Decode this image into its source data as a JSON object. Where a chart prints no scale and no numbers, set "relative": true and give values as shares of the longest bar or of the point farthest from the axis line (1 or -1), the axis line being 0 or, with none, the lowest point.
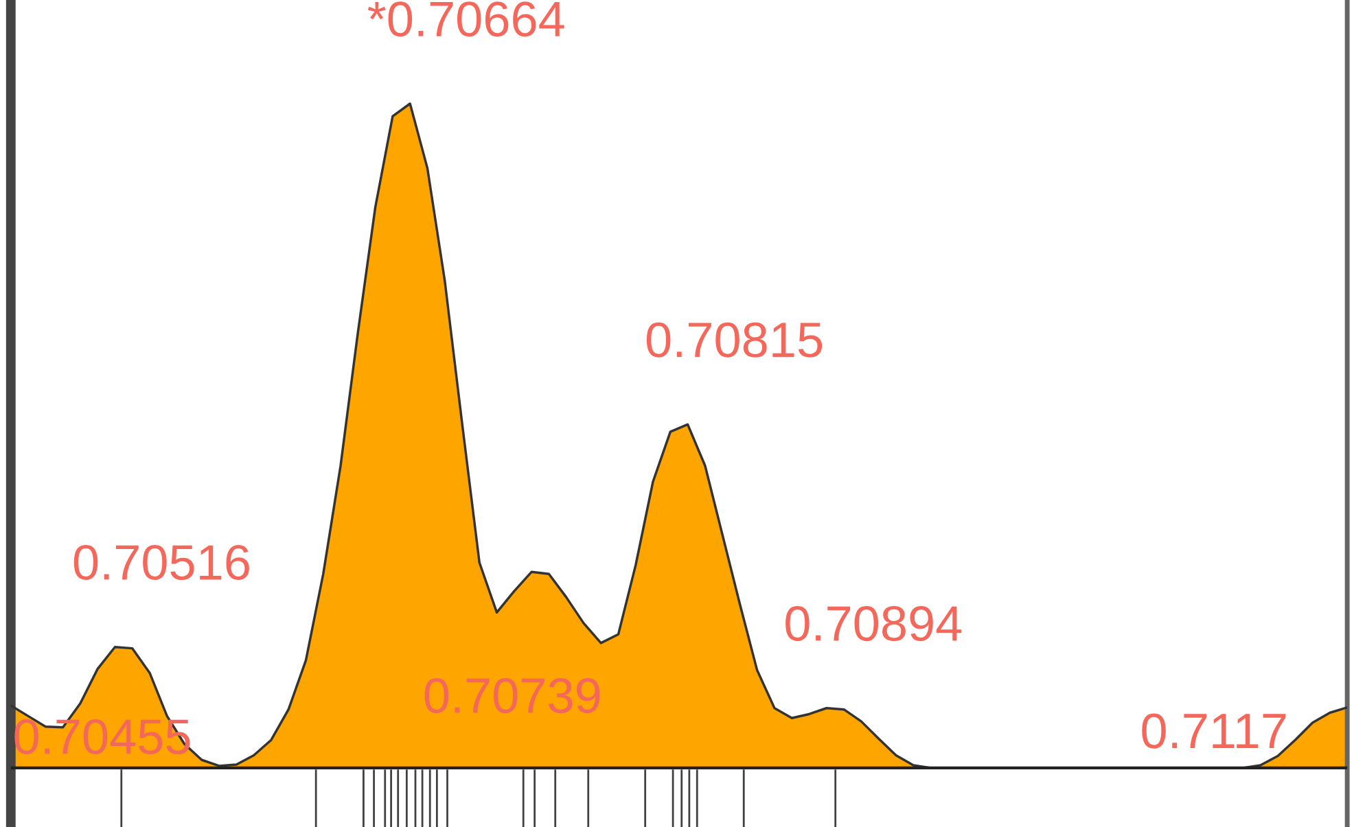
{
  "chart_data": {
    "type": "area",
    "relative": true,
    "categories": [
      null,
      null,
      null,
      null,
      null,
      null,
      null,
      null,
      null,
      null,
      null,
      null,
      null,
      null,
      null,
      null,
      null,
      null,
      null,
      null,
      null,
      null,
      null,
      null,
      null,
      null,
      null,
      null,
      null,
      null,
      null,
      null,
      null,
      null,
      null,
      null,
      null,
      null,
      null,
      null,
      null,
      null,
      null,
      null,
      null,
      null,
      null,
      null,
      null,
      null,
      null,
      null,
      null,
      null,
      null,
      null,
      null,
      null,
      null,
      null,
      null,
      null,
      null,
      null,
      null,
      null,
      null,
      null,
      null,
      null,
      null,
      null,
      null,
      null,
      null,
      null,
      null,
      null
    ],
    "series": [
      {
        "color": "#ffa500",
        "values": [
          0.094,
          0.078,
          0.062,
          0.061,
          0.097,
          0.149,
          0.182,
          0.18,
          0.143,
          0.078,
          0.036,
          0.012,
          0.003,
          0.005,
          0.019,
          0.042,
          0.088,
          0.162,
          0.292,
          0.455,
          0.656,
          0.844,
          0.981,
          1,
          0.903,
          0.734,
          0.519,
          0.309,
          0.234,
          0.266,
          0.295,
          0.292,
          0.257,
          0.218,
          0.188,
          0.201,
          0.305,
          0.431,
          0.506,
          0.517,
          0.455,
          0.351,
          0.247,
          0.147,
          0.09,
          0.075,
          0.081,
          0.09,
          0.088,
          0.07,
          0.044,
          0.019,
          0.004,
          0,
          0,
          0,
          0,
          0,
          0,
          0,
          0,
          0,
          0,
          0,
          0,
          0,
          0,
          0,
          0,
          0,
          0,
          0,
          0.004,
          0.018,
          0.042,
          0.068,
          0.083,
          0.091
        ]
      }
    ],
    "annotations": [
      "0.70455",
      "0.70516",
      "*0.70664",
      "0.70739",
      "0.70815",
      "0.70894",
      "0.7117"
    ]
  }
}
